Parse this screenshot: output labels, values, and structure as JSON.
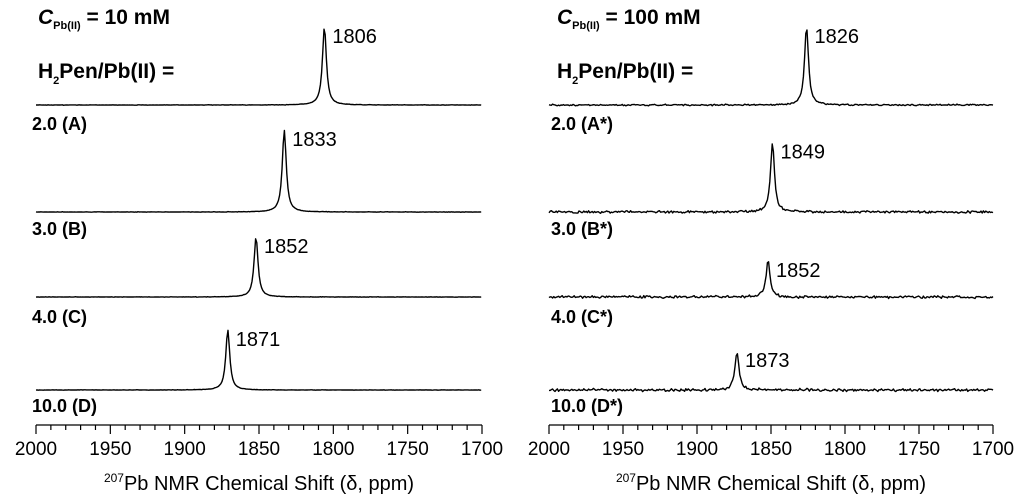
{
  "chart_data": [
    {
      "type": "line",
      "header": {
        "conc_symbol": "C",
        "conc_subscript": "Pb(II)",
        "conc_value": "= 10 mM",
        "ratio_h": "H",
        "ratio_sub": "2",
        "ratio_rest": "Pen/Pb(II) ="
      },
      "xaxis": {
        "label_sup": "207",
        "label_main": "Pb NMR Chemical Shift (δ, ppm)",
        "xlim": [
          2000,
          1700
        ],
        "ticks": [
          "2000",
          "1950",
          "1900",
          "1850",
          "1800",
          "1750",
          "1700"
        ],
        "tick_values": [
          2000,
          1950,
          1900,
          1850,
          1800,
          1750,
          1700
        ],
        "minor_step": 10
      },
      "series": [
        {
          "name": "2.0 (A)",
          "peak": 1806,
          "peak_label": "1806",
          "noise": 0.018,
          "amp": 1.0
        },
        {
          "name": "3.0 (B)",
          "peak": 1833,
          "peak_label": "1833",
          "noise": 0.018,
          "amp": 1.0
        },
        {
          "name": "4.0 (C)",
          "peak": 1852,
          "peak_label": "1852",
          "noise": 0.018,
          "amp": 1.0
        },
        {
          "name": "10.0 (D)",
          "peak": 1871,
          "peak_label": "1871",
          "noise": 0.018,
          "amp": 1.0
        }
      ]
    },
    {
      "type": "line",
      "header": {
        "conc_symbol": "C",
        "conc_subscript": "Pb(II)",
        "conc_value": "= 100 mM",
        "ratio_h": "H",
        "ratio_sub": "2",
        "ratio_rest": "Pen/Pb(II) ="
      },
      "xaxis": {
        "label_sup": "207",
        "label_main": "Pb NMR Chemical Shift (δ, ppm)",
        "xlim": [
          2000,
          1700
        ],
        "ticks": [
          "2000",
          "1950",
          "1900",
          "1850",
          "1800",
          "1750",
          "1700"
        ],
        "tick_values": [
          2000,
          1950,
          1900,
          1850,
          1800,
          1750,
          1700
        ],
        "minor_step": 10
      },
      "series": [
        {
          "name": "2.0 (A*)",
          "peak": 1826,
          "peak_label": "1826",
          "noise": 0.045,
          "amp": 1.0
        },
        {
          "name": "3.0 (B*)",
          "peak": 1849,
          "peak_label": "1849",
          "noise": 0.07,
          "amp": 0.85
        },
        {
          "name": "4.0 (C*)",
          "peak": 1852,
          "peak_label": "1852",
          "noise": 0.075,
          "amp": 0.6
        },
        {
          "name": "10.0 (D*)",
          "peak": 1873,
          "peak_label": "1873",
          "noise": 0.08,
          "amp": 0.65
        }
      ]
    }
  ]
}
